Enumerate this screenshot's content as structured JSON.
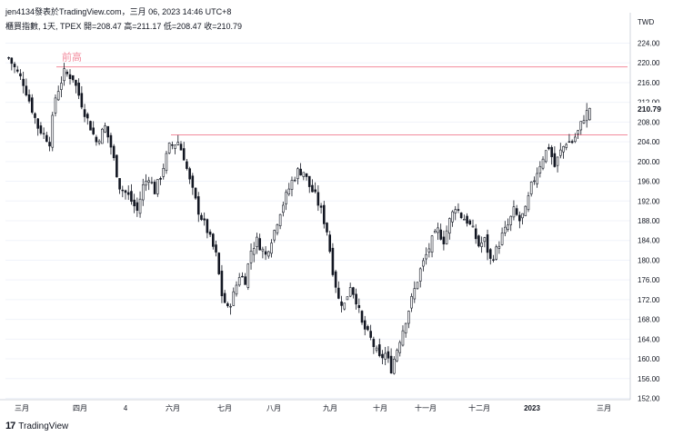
{
  "header": {
    "publish_text": "jen4134發表於TradingView.com，三月 06, 2023 14:46 UTC+8",
    "info_text": "櫃買指數, 1天, TPEX  開=208.47  高=211.17  低=208.47  收=210.79"
  },
  "footer": {
    "logo_mark": "17",
    "brand": "TradingView"
  },
  "chart_data": {
    "type": "candlestick",
    "currency": "TWD",
    "last_price": "210.79",
    "ylim": [
      152,
      228
    ],
    "y_ticks": [
      "224.00",
      "220.00",
      "216.00",
      "212.00",
      "208.00",
      "204.00",
      "200.00",
      "196.00",
      "192.00",
      "188.00",
      "184.00",
      "180.00",
      "176.00",
      "172.00",
      "168.00",
      "164.00",
      "160.00",
      "156.00",
      "152.00"
    ],
    "x_ticks": [
      "三月",
      "四月",
      "4",
      "六月",
      "七月",
      "八月",
      "九月",
      "十月",
      "十一月",
      "十二月",
      "2023",
      "三月"
    ],
    "annotations": [
      {
        "label": "前高",
        "price": 219.2,
        "from_index": 18,
        "to_index": 209
      },
      {
        "label": "",
        "price": 205.4,
        "from_index": 54,
        "to_index": 209
      }
    ],
    "colors": {
      "up": "#ffffff",
      "down": "#131722",
      "line": "#f28b9d",
      "grid": "#f0f3fa",
      "text": "#131722"
    },
    "approx_closes": [
      [
        0,
        221
      ],
      [
        5,
        216
      ],
      [
        10,
        207
      ],
      [
        14,
        204
      ],
      [
        16,
        213
      ],
      [
        19,
        218
      ],
      [
        22,
        217
      ],
      [
        26,
        210
      ],
      [
        30,
        204
      ],
      [
        33,
        207
      ],
      [
        35,
        203
      ],
      [
        38,
        195
      ],
      [
        41,
        193
      ],
      [
        44,
        190
      ],
      [
        46,
        195
      ],
      [
        48,
        197
      ],
      [
        50,
        194
      ],
      [
        52,
        197
      ],
      [
        55,
        203
      ],
      [
        58,
        204
      ],
      [
        60,
        201
      ],
      [
        62,
        196
      ],
      [
        65,
        190
      ],
      [
        68,
        186
      ],
      [
        71,
        181
      ],
      [
        73,
        173
      ],
      [
        75,
        170
      ],
      [
        77,
        173
      ],
      [
        79,
        177
      ],
      [
        81,
        176
      ],
      [
        83,
        182
      ],
      [
        85,
        184
      ],
      [
        88,
        181
      ],
      [
        91,
        186
      ],
      [
        93,
        190
      ],
      [
        95,
        193
      ],
      [
        97,
        196
      ],
      [
        99,
        198
      ],
      [
        101,
        198
      ],
      [
        103,
        195
      ],
      [
        105,
        193
      ],
      [
        107,
        190
      ],
      [
        109,
        186
      ],
      [
        111,
        178
      ],
      [
        113,
        172
      ],
      [
        115,
        171
      ],
      [
        117,
        175
      ],
      [
        119,
        172
      ],
      [
        121,
        167
      ],
      [
        124,
        164
      ],
      [
        127,
        160
      ],
      [
        129,
        161
      ],
      [
        131,
        158
      ],
      [
        133,
        162
      ],
      [
        135,
        166
      ],
      [
        137,
        170
      ],
      [
        139,
        174
      ],
      [
        141,
        178
      ],
      [
        143,
        181
      ],
      [
        145,
        184
      ],
      [
        147,
        186
      ],
      [
        149,
        184
      ],
      [
        151,
        188
      ],
      [
        153,
        191
      ],
      [
        155,
        189
      ],
      [
        157,
        188
      ],
      [
        159,
        186
      ],
      [
        161,
        183
      ],
      [
        163,
        184
      ],
      [
        165,
        180
      ],
      [
        167,
        182
      ],
      [
        169,
        185
      ],
      [
        171,
        187
      ],
      [
        173,
        190
      ],
      [
        175,
        188
      ],
      [
        177,
        190
      ],
      [
        179,
        195
      ],
      [
        181,
        198
      ],
      [
        183,
        201
      ],
      [
        185,
        203
      ],
      [
        187,
        199
      ],
      [
        189,
        202
      ],
      [
        191,
        204
      ],
      [
        193,
        204
      ],
      [
        195,
        206
      ],
      [
        197,
        209
      ],
      [
        199,
        210.79
      ]
    ]
  }
}
